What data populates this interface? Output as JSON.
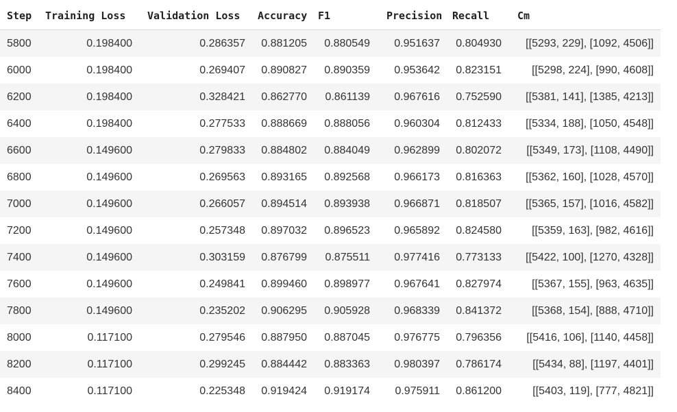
{
  "table": {
    "headers": {
      "step": "Step",
      "training_loss": "Training Loss",
      "validation_loss": "Validation Loss",
      "accuracy": "Accuracy",
      "f1": "F1",
      "precision": "Precision",
      "recall": "Recall",
      "cm": "Cm"
    },
    "rows": [
      {
        "step": "5800",
        "training_loss": "0.198400",
        "validation_loss": "0.286357",
        "accuracy": "0.881205",
        "f1": "0.880549",
        "precision": "0.951637",
        "recall": "0.804930",
        "cm": "[[5293, 229], [1092, 4506]]"
      },
      {
        "step": "6000",
        "training_loss": "0.198400",
        "validation_loss": "0.269407",
        "accuracy": "0.890827",
        "f1": "0.890359",
        "precision": "0.953642",
        "recall": "0.823151",
        "cm": "[[5298, 224], [990, 4608]]"
      },
      {
        "step": "6200",
        "training_loss": "0.198400",
        "validation_loss": "0.328421",
        "accuracy": "0.862770",
        "f1": "0.861139",
        "precision": "0.967616",
        "recall": "0.752590",
        "cm": "[[5381, 141], [1385, 4213]]"
      },
      {
        "step": "6400",
        "training_loss": "0.198400",
        "validation_loss": "0.277533",
        "accuracy": "0.888669",
        "f1": "0.888056",
        "precision": "0.960304",
        "recall": "0.812433",
        "cm": "[[5334, 188], [1050, 4548]]"
      },
      {
        "step": "6600",
        "training_loss": "0.149600",
        "validation_loss": "0.279833",
        "accuracy": "0.884802",
        "f1": "0.884049",
        "precision": "0.962899",
        "recall": "0.802072",
        "cm": "[[5349, 173], [1108, 4490]]"
      },
      {
        "step": "6800",
        "training_loss": "0.149600",
        "validation_loss": "0.269563",
        "accuracy": "0.893165",
        "f1": "0.892568",
        "precision": "0.966173",
        "recall": "0.816363",
        "cm": "[[5362, 160], [1028, 4570]]"
      },
      {
        "step": "7000",
        "training_loss": "0.149600",
        "validation_loss": "0.266057",
        "accuracy": "0.894514",
        "f1": "0.893938",
        "precision": "0.966871",
        "recall": "0.818507",
        "cm": "[[5365, 157], [1016, 4582]]"
      },
      {
        "step": "7200",
        "training_loss": "0.149600",
        "validation_loss": "0.257348",
        "accuracy": "0.897032",
        "f1": "0.896523",
        "precision": "0.965892",
        "recall": "0.824580",
        "cm": "[[5359, 163], [982, 4616]]"
      },
      {
        "step": "7400",
        "training_loss": "0.149600",
        "validation_loss": "0.303159",
        "accuracy": "0.876799",
        "f1": "0.875511",
        "precision": "0.977416",
        "recall": "0.773133",
        "cm": "[[5422, 100], [1270, 4328]]"
      },
      {
        "step": "7600",
        "training_loss": "0.149600",
        "validation_loss": "0.249841",
        "accuracy": "0.899460",
        "f1": "0.898977",
        "precision": "0.967641",
        "recall": "0.827974",
        "cm": "[[5367, 155], [963, 4635]]"
      },
      {
        "step": "7800",
        "training_loss": "0.149600",
        "validation_loss": "0.235202",
        "accuracy": "0.906295",
        "f1": "0.905928",
        "precision": "0.968339",
        "recall": "0.841372",
        "cm": "[[5368, 154], [888, 4710]]"
      },
      {
        "step": "8000",
        "training_loss": "0.117100",
        "validation_loss": "0.279546",
        "accuracy": "0.887950",
        "f1": "0.887045",
        "precision": "0.976775",
        "recall": "0.796356",
        "cm": "[[5416, 106], [1140, 4458]]"
      },
      {
        "step": "8200",
        "training_loss": "0.117100",
        "validation_loss": "0.299245",
        "accuracy": "0.884442",
        "f1": "0.883363",
        "precision": "0.980397",
        "recall": "0.786174",
        "cm": "[[5434, 88], [1197, 4401]]"
      },
      {
        "step": "8400",
        "training_loss": "0.117100",
        "validation_loss": "0.225348",
        "accuracy": "0.919424",
        "f1": "0.919174",
        "precision": "0.975911",
        "recall": "0.861200",
        "cm": "[[5403, 119], [777, 4821]]"
      }
    ]
  },
  "colors": {
    "row_stripe": "#f5f5f5",
    "row_plain": "#ffffff",
    "header_text": "#212121",
    "cell_text": "#333333",
    "header_rule": "#d6d6d6"
  }
}
